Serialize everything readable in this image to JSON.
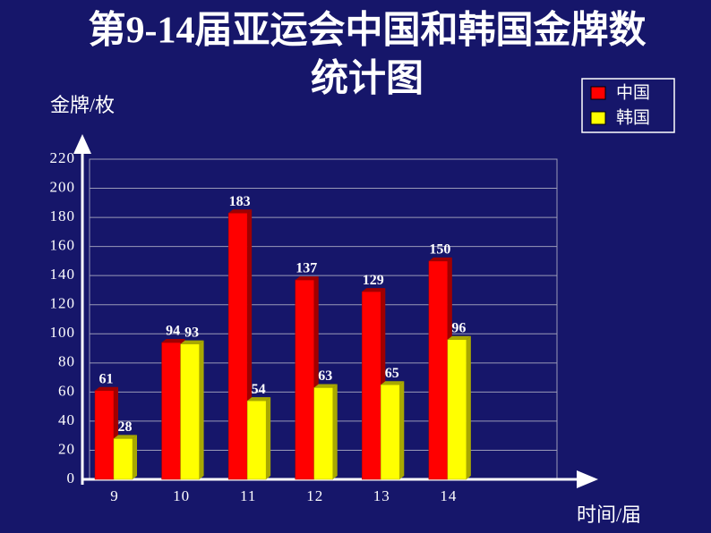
{
  "chart_data": {
    "type": "bar",
    "title": [
      "第9-14届亚运会中国和韩国金牌数",
      "统计图"
    ],
    "y_label": "金牌/枚",
    "x_label": "时间/届",
    "categories": [
      "9",
      "10",
      "11",
      "12",
      "13",
      "14",
      null
    ],
    "series": [
      {
        "name": "中国",
        "color": "#ff0000",
        "values": [
          61,
          94,
          183,
          137,
          129,
          150,
          null
        ]
      },
      {
        "name": "韩国",
        "color": "#ffff00",
        "values": [
          28,
          93,
          54,
          63,
          65,
          96,
          null
        ]
      }
    ],
    "ylim": [
      0,
      220
    ],
    "yticks": [
      0,
      20,
      40,
      60,
      80,
      100,
      120,
      140,
      160,
      180,
      200,
      220
    ],
    "grid": true,
    "legend": "top-right"
  }
}
